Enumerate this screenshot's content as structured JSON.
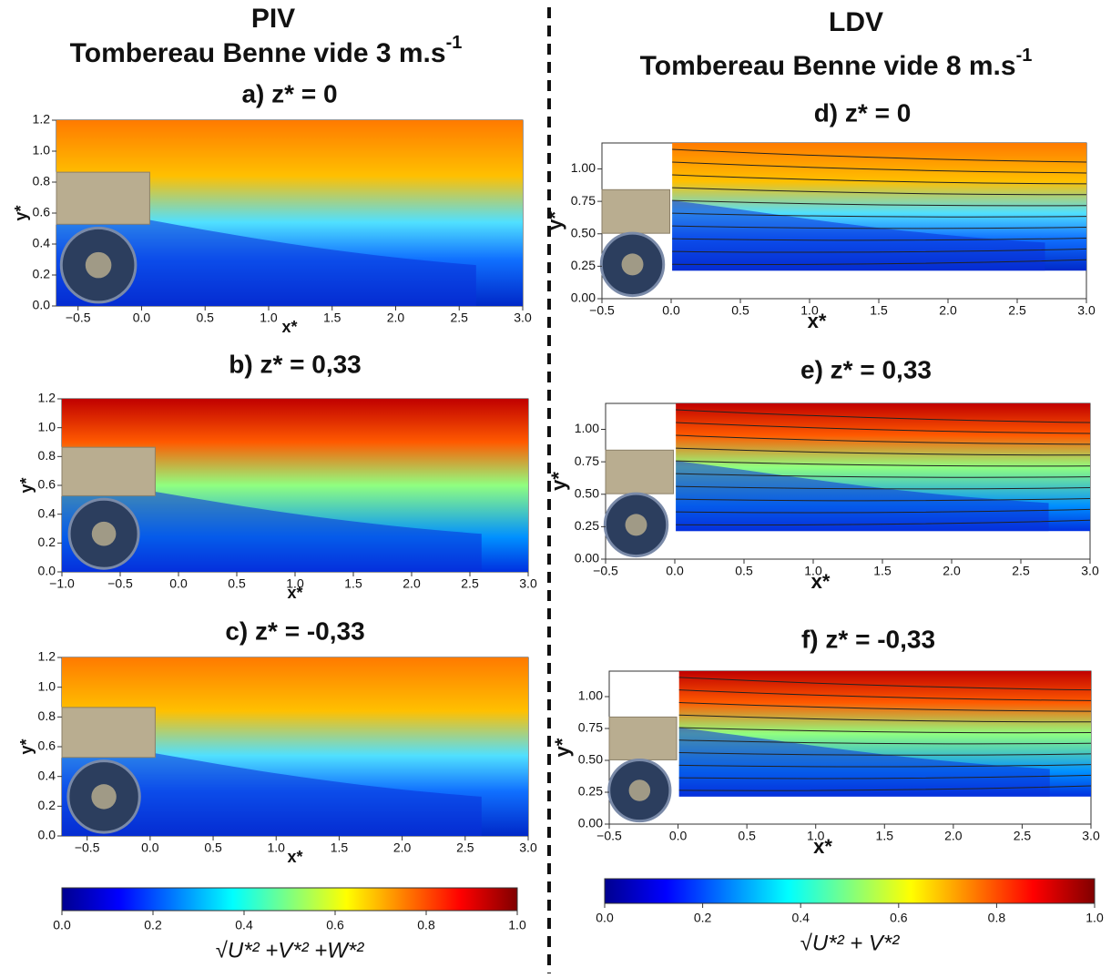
{
  "columns": [
    {
      "method": "PIV",
      "title": "Tombereau Benne vide 3 m.s",
      "title_superscript": "-1"
    },
    {
      "method": "LDV",
      "title": "Tombereau Benne vide 8 m.s",
      "title_superscript": "-1"
    }
  ],
  "chart_data": [
    {
      "type": "heatmap",
      "title": "a) z* = 0",
      "xlabel": "x*",
      "ylabel": "y*",
      "xlim": [
        -0.67,
        3.0
      ],
      "ylim": [
        0,
        1.2
      ],
      "xticks": [
        {
          "value": -0.5,
          "label": "−0.5"
        },
        {
          "value": 0,
          "label": "0.0"
        },
        {
          "value": 0.5,
          "label": "0.5"
        },
        {
          "value": 1,
          "label": "1.0"
        },
        {
          "value": 1.5,
          "label": "1.5"
        },
        {
          "value": 2,
          "label": "2.0"
        },
        {
          "value": 2.5,
          "label": "2.5"
        },
        {
          "value": 3,
          "label": "3.0"
        }
      ],
      "yticks": [
        {
          "value": 0,
          "label": "0.0"
        },
        {
          "value": 0.2,
          "label": "0.2"
        },
        {
          "value": 0.4,
          "label": "0.4"
        },
        {
          "value": 0.6,
          "label": "0.6"
        },
        {
          "value": 0.8,
          "label": "0.8"
        },
        {
          "value": 1,
          "label": "1.0"
        },
        {
          "value": 1.2,
          "label": "1.2"
        }
      ]
    },
    {
      "type": "heatmap",
      "title": "b) z* = 0,33",
      "xlabel": "x*",
      "ylabel": "y*",
      "xlim": [
        -1.0,
        3.0
      ],
      "ylim": [
        0,
        1.2
      ],
      "xticks": [
        {
          "value": -1,
          "label": "−1.0"
        },
        {
          "value": -0.5,
          "label": "−0.5"
        },
        {
          "value": 0,
          "label": "0.0"
        },
        {
          "value": 0.5,
          "label": "0.5"
        },
        {
          "value": 1,
          "label": "1.0"
        },
        {
          "value": 1.5,
          "label": "1.5"
        },
        {
          "value": 2,
          "label": "2.0"
        },
        {
          "value": 2.5,
          "label": "2.5"
        },
        {
          "value": 3,
          "label": "3.0"
        }
      ],
      "yticks": [
        {
          "value": 0,
          "label": "0.0"
        },
        {
          "value": 0.2,
          "label": "0.2"
        },
        {
          "value": 0.4,
          "label": "0.4"
        },
        {
          "value": 0.6,
          "label": "0.6"
        },
        {
          "value": 0.8,
          "label": "0.8"
        },
        {
          "value": 1,
          "label": "1.0"
        },
        {
          "value": 1.2,
          "label": "1.2"
        }
      ]
    },
    {
      "type": "heatmap",
      "title": "c) z* = -0,33",
      "xlabel": "x*",
      "ylabel": "y*",
      "xlim": [
        -0.7,
        3.0
      ],
      "ylim": [
        0,
        1.2
      ],
      "xticks": [
        {
          "value": -0.5,
          "label": "−0.5"
        },
        {
          "value": 0,
          "label": "0.0"
        },
        {
          "value": 0.5,
          "label": "0.5"
        },
        {
          "value": 1,
          "label": "1.0"
        },
        {
          "value": 1.5,
          "label": "1.5"
        },
        {
          "value": 2,
          "label": "2.0"
        },
        {
          "value": 2.5,
          "label": "2.5"
        },
        {
          "value": 3,
          "label": "3.0"
        }
      ],
      "yticks": [
        {
          "value": 0,
          "label": "0.0"
        },
        {
          "value": 0.2,
          "label": "0.2"
        },
        {
          "value": 0.4,
          "label": "0.4"
        },
        {
          "value": 0.6,
          "label": "0.6"
        },
        {
          "value": 0.8,
          "label": "0.8"
        },
        {
          "value": 1,
          "label": "1.0"
        },
        {
          "value": 1.2,
          "label": "1.2"
        }
      ]
    },
    {
      "type": "heatmap",
      "title": "d) z* = 0",
      "xlabel": "x*",
      "ylabel": "y*",
      "xlim": [
        -0.5,
        3.0
      ],
      "ylim": [
        0,
        1.2
      ],
      "xticks": [
        {
          "value": -0.5,
          "label": "−0.5"
        },
        {
          "value": 0,
          "label": "0.0"
        },
        {
          "value": 0.5,
          "label": "0.5"
        },
        {
          "value": 1,
          "label": "1.0"
        },
        {
          "value": 1.5,
          "label": "1.5"
        },
        {
          "value": 2,
          "label": "2.0"
        },
        {
          "value": 2.5,
          "label": "2.5"
        },
        {
          "value": 3,
          "label": "3.0"
        }
      ],
      "yticks": [
        {
          "value": 0,
          "label": "0.00"
        },
        {
          "value": 0.25,
          "label": "0.25"
        },
        {
          "value": 0.5,
          "label": "0.50"
        },
        {
          "value": 0.75,
          "label": "0.75"
        },
        {
          "value": 1,
          "label": "1.00"
        }
      ]
    },
    {
      "type": "heatmap",
      "title": "e) z* = 0,33",
      "xlabel": "x*",
      "ylabel": "y*",
      "xlim": [
        -0.5,
        3.0
      ],
      "ylim": [
        0,
        1.2
      ],
      "xticks": [
        {
          "value": -0.5,
          "label": "−0.5"
        },
        {
          "value": 0,
          "label": "0.0"
        },
        {
          "value": 0.5,
          "label": "0.5"
        },
        {
          "value": 1,
          "label": "1.0"
        },
        {
          "value": 1.5,
          "label": "1.5"
        },
        {
          "value": 2,
          "label": "2.0"
        },
        {
          "value": 2.5,
          "label": "2.5"
        },
        {
          "value": 3,
          "label": "3.0"
        }
      ],
      "yticks": [
        {
          "value": 0,
          "label": "0.00"
        },
        {
          "value": 0.25,
          "label": "0.25"
        },
        {
          "value": 0.5,
          "label": "0.50"
        },
        {
          "value": 0.75,
          "label": "0.75"
        },
        {
          "value": 1,
          "label": "1.00"
        }
      ]
    },
    {
      "type": "heatmap",
      "title": "f) z* = -0,33",
      "xlabel": "x*",
      "ylabel": "y*",
      "xlim": [
        -0.5,
        3.0
      ],
      "ylim": [
        0,
        1.2
      ],
      "xticks": [
        {
          "value": -0.5,
          "label": "−0.5"
        },
        {
          "value": 0,
          "label": "0.0"
        },
        {
          "value": 0.5,
          "label": "0.5"
        },
        {
          "value": 1,
          "label": "1.0"
        },
        {
          "value": 1.5,
          "label": "1.5"
        },
        {
          "value": 2,
          "label": "2.0"
        },
        {
          "value": 2.5,
          "label": "2.5"
        },
        {
          "value": 3,
          "label": "3.0"
        }
      ],
      "yticks": [
        {
          "value": 0,
          "label": "0.00"
        },
        {
          "value": 0.25,
          "label": "0.25"
        },
        {
          "value": 0.5,
          "label": "0.50"
        },
        {
          "value": 0.75,
          "label": "0.75"
        },
        {
          "value": 1,
          "label": "1.00"
        }
      ]
    },
    {
      "type": "colorbar",
      "label": "√U*² +V*² +W*²",
      "xlim": [
        0,
        1
      ],
      "xticks": [
        {
          "value": 0,
          "label": "0.0"
        },
        {
          "value": 0.2,
          "label": "0.2"
        },
        {
          "value": 0.4,
          "label": "0.4"
        },
        {
          "value": 0.6,
          "label": "0.6"
        },
        {
          "value": 0.8,
          "label": "0.8"
        },
        {
          "value": 1,
          "label": "1.0"
        }
      ]
    },
    {
      "type": "colorbar",
      "label": "√U*² + V*²",
      "xlim": [
        0,
        1
      ],
      "xticks": [
        {
          "value": 0,
          "label": "0.0"
        },
        {
          "value": 0.2,
          "label": "0.2"
        },
        {
          "value": 0.4,
          "label": "0.4"
        },
        {
          "value": 0.6,
          "label": "0.6"
        },
        {
          "value": 0.8,
          "label": "0.8"
        },
        {
          "value": 1,
          "label": "1.0"
        }
      ]
    }
  ]
}
